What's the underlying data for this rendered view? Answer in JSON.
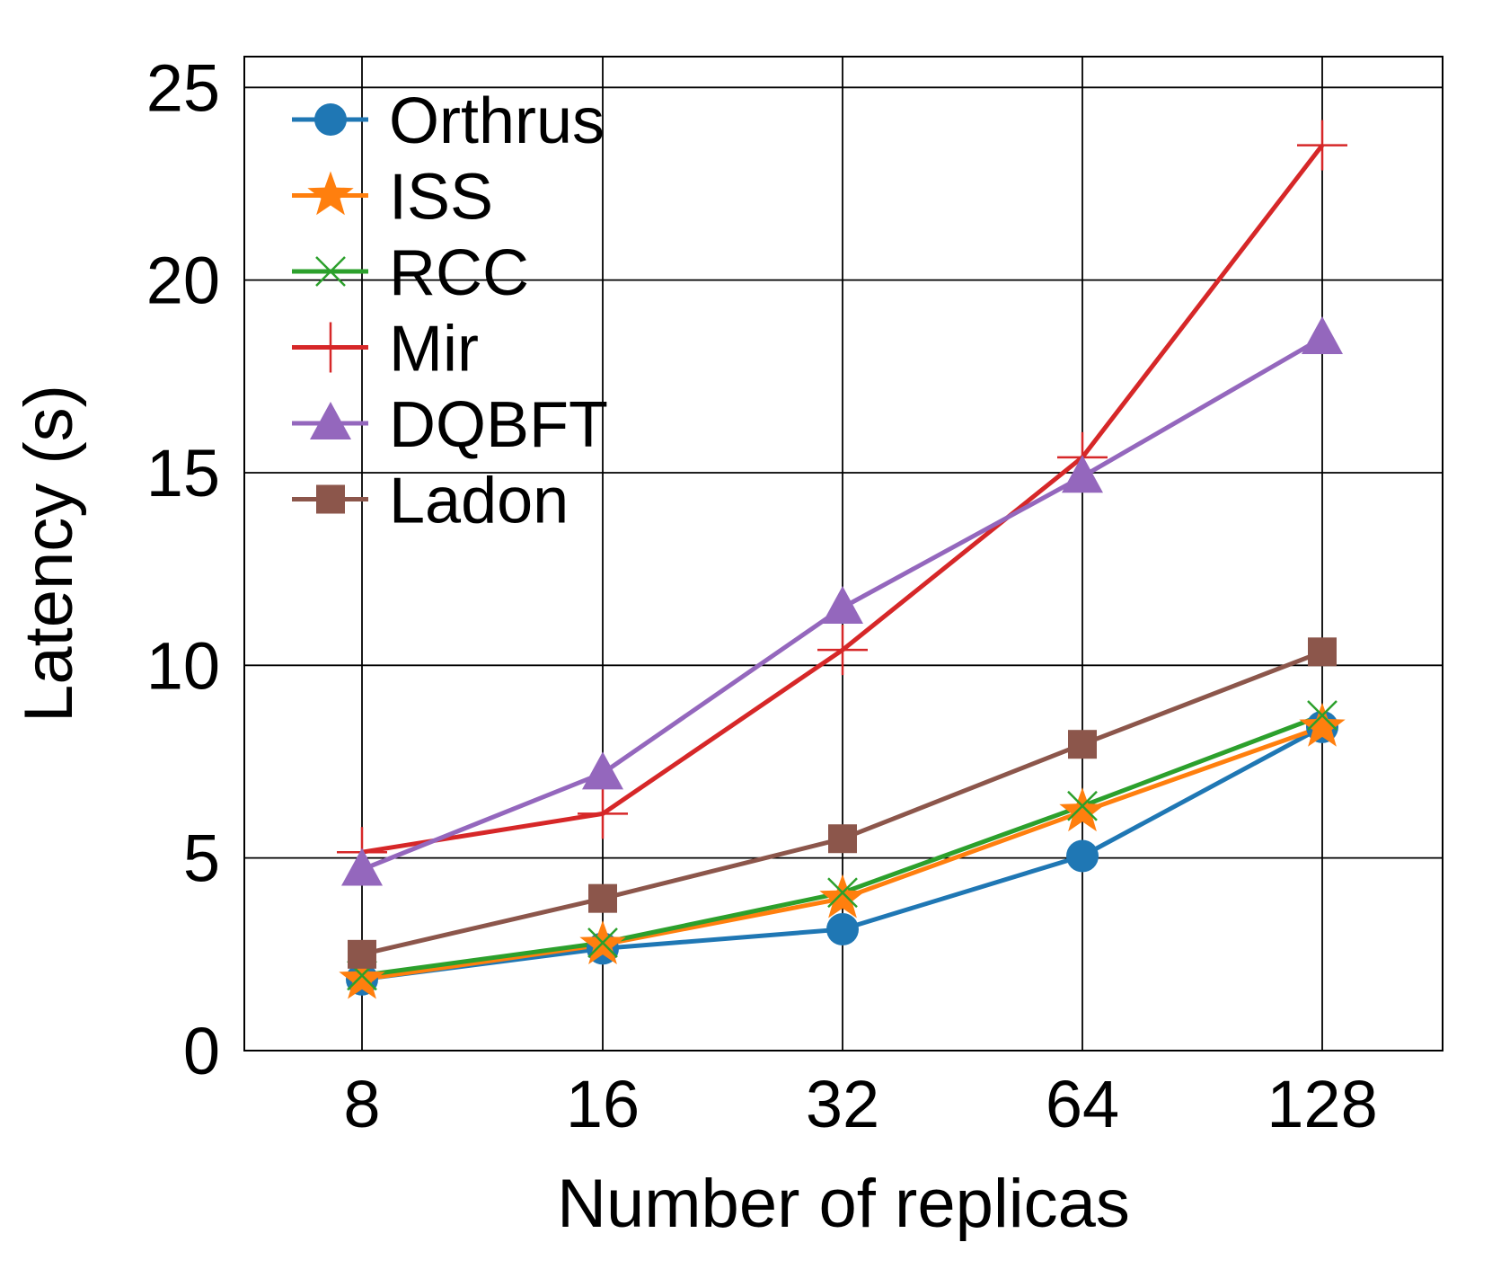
{
  "chart_data": {
    "type": "line",
    "title": "",
    "xlabel": "Number of replicas",
    "ylabel": "Latency (s)",
    "categories": [
      "8",
      "16",
      "32",
      "64",
      "128"
    ],
    "ylim": [
      0,
      25.8
    ],
    "yticks": [
      0,
      5,
      10,
      15,
      20,
      25
    ],
    "grid": true,
    "legend_position": "top-left",
    "series": [
      {
        "name": "Orthrus",
        "color": "#1f77b4",
        "marker": "circle",
        "values": [
          1.85,
          2.65,
          3.15,
          5.05,
          8.4
        ]
      },
      {
        "name": "ISS",
        "color": "#ff7f0e",
        "marker": "star",
        "values": [
          1.85,
          2.75,
          3.95,
          6.2,
          8.4
        ]
      },
      {
        "name": "RCC",
        "color": "#2ca02c",
        "marker": "x",
        "values": [
          1.95,
          2.8,
          4.1,
          6.35,
          8.7
        ]
      },
      {
        "name": "Mir",
        "color": "#d62728",
        "marker": "plus",
        "values": [
          5.15,
          6.15,
          10.4,
          15.4,
          23.5
        ]
      },
      {
        "name": "DQBFT",
        "color": "#9467bd",
        "marker": "triangle",
        "values": [
          4.7,
          7.2,
          11.5,
          14.9,
          18.5
        ]
      },
      {
        "name": "Ladon",
        "color": "#8c564b",
        "marker": "square",
        "values": [
          2.5,
          3.95,
          5.5,
          7.95,
          10.35
        ]
      }
    ]
  }
}
